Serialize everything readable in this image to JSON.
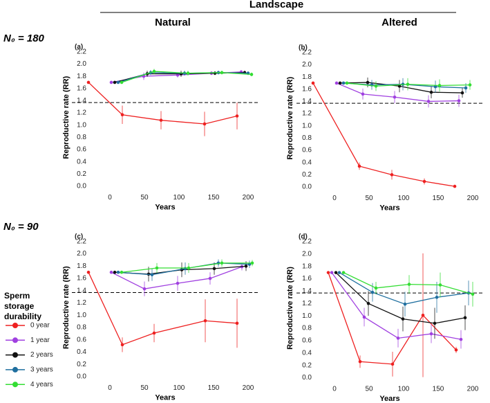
{
  "header": "Landscape",
  "columns": [
    "Natural",
    "Altered"
  ],
  "rows": [
    "N₀ = 180",
    "N₀ = 90"
  ],
  "legend_title": "Sperm storage durability",
  "chart_data": [
    {
      "type": "line",
      "panel_label": "(a)",
      "xlabel": "Years",
      "ylabel": "Reproductive rate (RR)",
      "xlim": [
        -35,
        215
      ],
      "ylim": [
        -0.05,
        2.3
      ],
      "xticks": [
        0,
        50,
        100,
        150,
        200
      ],
      "yticks": [
        {
          "value": 0,
          "label": "0.0"
        },
        0.2,
        0.4,
        0.6,
        0.8,
        {
          "value": 1,
          "label": "1.0"
        },
        1.2,
        1.4,
        1.6,
        1.8,
        {
          "value": 2,
          "label": "2.0"
        },
        2.2
      ],
      "hline": 1.37,
      "series": [
        {
          "name": "0 year",
          "color": "#ee2020",
          "x": [
            -31,
            18,
            74,
            137,
            184
          ],
          "values": [
            1.7,
            1.17,
            1.08,
            1.02,
            1.15
          ],
          "errors": [
            0,
            0.15,
            0.15,
            0.2,
            0.22
          ]
        },
        {
          "name": "1 year",
          "color": "#a040e0",
          "x": [
            2,
            49,
            98,
            147,
            190
          ],
          "values": [
            1.7,
            1.8,
            1.82,
            1.85,
            1.87
          ],
          "errors": [
            0,
            0.06,
            0.04,
            0.03,
            0.03
          ]
        },
        {
          "name": "2 years",
          "color": "#111111",
          "x": [
            7,
            54,
            103,
            152,
            195
          ],
          "values": [
            1.7,
            1.84,
            1.84,
            1.85,
            1.86
          ],
          "errors": [
            0,
            0.05,
            0.05,
            0.03,
            0.03
          ]
        },
        {
          "name": "3 years",
          "color": "#1f6f9f",
          "x": [
            12,
            59,
            108,
            157,
            200
          ],
          "values": [
            1.7,
            1.86,
            1.85,
            1.86,
            1.85
          ],
          "errors": [
            0,
            0.04,
            0.04,
            0.03,
            0.03
          ]
        },
        {
          "name": "4 years",
          "color": "#33dd33",
          "x": [
            17,
            64,
            113,
            162,
            205
          ],
          "values": [
            1.7,
            1.88,
            1.85,
            1.86,
            1.83
          ],
          "errors": [
            0,
            0.04,
            0.04,
            0.03,
            0.03
          ]
        }
      ]
    },
    {
      "type": "line",
      "panel_label": "(b)",
      "xlabel": "Years",
      "ylabel": "Reproductive rate (RR)",
      "xlim": [
        -35,
        215
      ],
      "ylim": [
        -0.05,
        2.3
      ],
      "xticks": [
        0,
        50,
        100,
        150,
        200
      ],
      "yticks": [
        {
          "value": 0,
          "label": "0.0"
        },
        0.2,
        0.4,
        0.6,
        0.8,
        {
          "value": 1,
          "label": "1.0"
        },
        1.2,
        1.4,
        1.6,
        1.8,
        {
          "value": 2,
          "label": "2.0"
        },
        2.2
      ],
      "hline": 1.37,
      "series": [
        {
          "name": "0 year",
          "color": "#ee2020",
          "x": [
            -31,
            36,
            83,
            130,
            174
          ],
          "values": [
            1.7,
            0.34,
            0.2,
            0.09,
            0.01
          ],
          "errors": [
            0,
            0.06,
            0.08,
            0.05,
            0.02
          ]
        },
        {
          "name": "1 year",
          "color": "#a040e0",
          "x": [
            3,
            41,
            87,
            136,
            180
          ],
          "values": [
            1.7,
            1.52,
            1.47,
            1.4,
            1.41
          ],
          "errors": [
            0,
            0.09,
            0.1,
            0.1,
            0.1
          ]
        },
        {
          "name": "2 years",
          "color": "#111111",
          "x": [
            8,
            48,
            94,
            140,
            185
          ],
          "values": [
            1.7,
            1.71,
            1.65,
            1.55,
            1.54
          ],
          "errors": [
            0,
            0.08,
            0.1,
            0.1,
            0.08
          ]
        },
        {
          "name": "3 years",
          "color": "#1f6f9f",
          "x": [
            13,
            54,
            99,
            146,
            190
          ],
          "values": [
            1.7,
            1.67,
            1.68,
            1.64,
            1.62
          ],
          "errors": [
            0,
            0.08,
            0.1,
            0.1,
            0.08
          ]
        },
        {
          "name": "4 years",
          "color": "#33dd33",
          "x": [
            18,
            60,
            106,
            152,
            196
          ],
          "values": [
            1.7,
            1.65,
            1.68,
            1.66,
            1.67
          ],
          "errors": [
            0,
            0.08,
            0.1,
            0.1,
            0.08
          ]
        }
      ]
    },
    {
      "type": "line",
      "panel_label": "(c)",
      "xlabel": "Years",
      "ylabel": "Reproductive rate (RR)",
      "xlim": [
        -35,
        215
      ],
      "ylim": [
        -0.05,
        2.3
      ],
      "xticks": [
        0,
        50,
        100,
        150,
        200
      ],
      "yticks": [
        {
          "value": 0,
          "label": "0.0"
        },
        0.2,
        0.4,
        0.6,
        0.8,
        {
          "value": 1,
          "label": "1.0"
        },
        1.2,
        1.4,
        1.6,
        1.8,
        {
          "value": 2,
          "label": "2.0"
        },
        2.2
      ],
      "hline": 1.37,
      "series": [
        {
          "name": "0 year",
          "color": "#ee2020",
          "x": [
            -31,
            18,
            64,
            138,
            184
          ],
          "values": [
            1.7,
            0.52,
            0.71,
            0.91,
            0.87
          ],
          "errors": [
            0,
            0.12,
            0.15,
            0.35,
            0.4
          ]
        },
        {
          "name": "1 year",
          "color": "#a040e0",
          "x": [
            2,
            50,
            98,
            145,
            191
          ],
          "values": [
            1.7,
            1.43,
            1.52,
            1.6,
            1.79
          ],
          "errors": [
            0,
            0.12,
            0.12,
            0.1,
            0.06
          ]
        },
        {
          "name": "2 years",
          "color": "#111111",
          "x": [
            7,
            56,
            104,
            151,
            197
          ],
          "values": [
            1.7,
            1.67,
            1.74,
            1.76,
            1.8
          ],
          "errors": [
            0,
            0.12,
            0.12,
            0.1,
            0.08
          ]
        },
        {
          "name": "3 years",
          "color": "#1f6f9f",
          "x": [
            12,
            61,
            109,
            157,
            202
          ],
          "values": [
            1.7,
            1.66,
            1.76,
            1.85,
            1.83
          ],
          "errors": [
            0,
            0.1,
            0.1,
            0.06,
            0.06
          ]
        },
        {
          "name": "4 years",
          "color": "#33dd33",
          "x": [
            17,
            68,
            114,
            162,
            206
          ],
          "values": [
            1.7,
            1.77,
            1.77,
            1.85,
            1.85
          ],
          "errors": [
            0,
            0.08,
            0.08,
            0.06,
            0.05
          ]
        }
      ]
    },
    {
      "type": "line",
      "panel_label": "(d)",
      "xlabel": "Years",
      "ylabel": "Reproductive rate (RR)",
      "xlim": [
        -35,
        215
      ],
      "ylim": [
        -0.05,
        2.3
      ],
      "xticks": [
        0,
        50,
        100,
        150,
        200
      ],
      "yticks": [
        {
          "value": 0,
          "label": "0.0"
        },
        0.2,
        0.4,
        0.6,
        0.8,
        {
          "value": 1,
          "label": "1.0"
        },
        1.2,
        1.4,
        1.6,
        1.8,
        {
          "value": 2,
          "label": "2.0"
        },
        2.2
      ],
      "hline": 1.37,
      "series": [
        {
          "name": "0 year",
          "color": "#ee2020",
          "x": [
            -9,
            37,
            84,
            128,
            176
          ],
          "values": [
            1.7,
            0.26,
            0.22,
            1.01,
            0.45
          ],
          "errors": [
            0,
            0.1,
            0.2,
            1.0,
            0.05
          ]
        },
        {
          "name": "1 year",
          "color": "#a040e0",
          "x": [
            -4,
            43,
            92,
            140,
            183
          ],
          "values": [
            1.7,
            0.98,
            0.64,
            0.71,
            0.62
          ],
          "errors": [
            0,
            0.15,
            0.15,
            0.15,
            0.15
          ]
        },
        {
          "name": "2 years",
          "color": "#111111",
          "x": [
            2,
            49,
            99,
            145,
            189
          ],
          "values": [
            1.7,
            1.2,
            0.95,
            0.88,
            0.97
          ],
          "errors": [
            0,
            0.2,
            0.2,
            0.25,
            0.2
          ]
        },
        {
          "name": "3 years",
          "color": "#1f6f9f",
          "x": [
            7,
            55,
            102,
            148,
            194
          ],
          "values": [
            1.7,
            1.38,
            1.19,
            1.3,
            1.37
          ],
          "errors": [
            0,
            0.15,
            0.2,
            0.25,
            0.2
          ]
        },
        {
          "name": "4 years",
          "color": "#33dd33",
          "x": [
            13,
            60,
            108,
            153,
            200
          ],
          "values": [
            1.7,
            1.45,
            1.51,
            1.5,
            1.35
          ],
          "errors": [
            0,
            0.1,
            0.15,
            0.2,
            0.2
          ]
        }
      ]
    }
  ]
}
